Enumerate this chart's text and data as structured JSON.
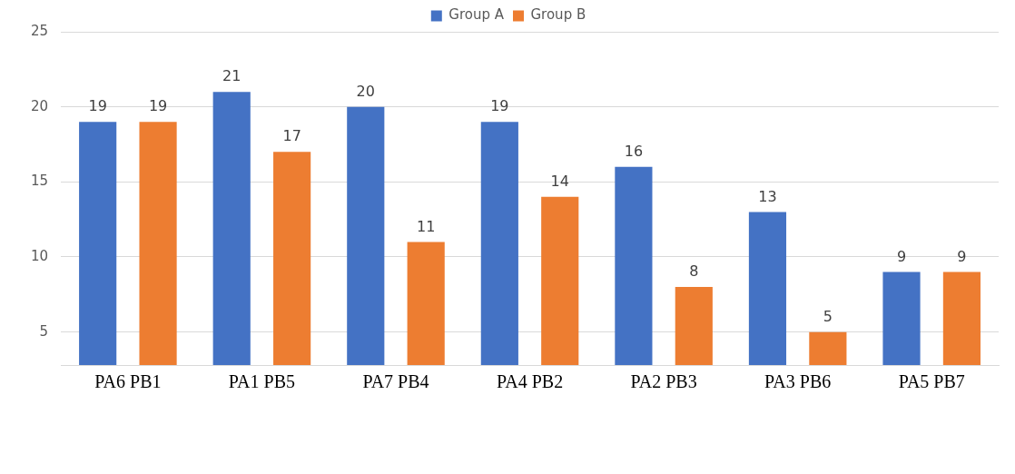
{
  "chart_data": {
    "type": "bar",
    "categories": [
      "PA6 PB1",
      "PA1 PB5",
      "PA7 PB4",
      "PA4 PB2",
      "PA2 PB3",
      "PA3 PB6",
      "PA5 PB7"
    ],
    "series": [
      {
        "name": "Group A",
        "color": "#4472c4",
        "values": [
          19,
          21,
          20,
          19,
          16,
          13,
          9
        ]
      },
      {
        "name": "Group B",
        "color": "#ed7d31",
        "values": [
          19,
          17,
          11,
          14,
          8,
          5,
          9
        ]
      }
    ],
    "ylim": [
      2.8,
      25
    ],
    "yticks": [
      5,
      10,
      15,
      20,
      25
    ],
    "grid": "y",
    "legend": "top",
    "data_labels": true
  }
}
